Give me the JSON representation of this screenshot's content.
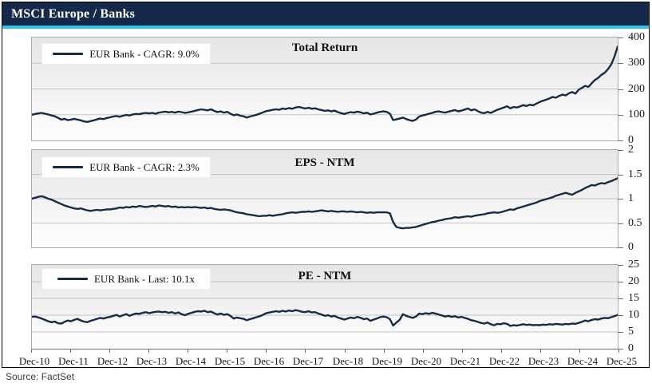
{
  "header": {
    "title": "MSCI Europe / Banks"
  },
  "footer": {
    "source": "Source: FactSet"
  },
  "colors": {
    "header_bg": "#15294b",
    "accent": "#33c1ec",
    "series_line": "#172b47",
    "grid": "#c3c3c3",
    "axis": "#6e6e6e",
    "text": "#1a1a1a"
  },
  "chart_data": [
    {
      "type": "line",
      "title": "Total Return",
      "legend": "EUR Bank - CAGR: 9.0%",
      "ylim": [
        0,
        400
      ],
      "yticks": [
        0,
        100,
        200,
        300,
        400
      ],
      "x_labels": [
        "Dec-10",
        "Dec-11",
        "Dec-12",
        "Dec-13",
        "Dec-14",
        "Dec-15",
        "Dec-16",
        "Dec-17",
        "Dec-18",
        "Dec-19",
        "Dec-20",
        "Dec-21",
        "Dec-22",
        "Dec-23",
        "Dec-24",
        "Dec-25"
      ],
      "series": [
        {
          "name": "EUR Bank",
          "values": [
            100,
            103,
            105,
            107,
            104,
            101,
            97,
            94,
            88,
            81,
            84,
            79,
            81,
            84,
            81,
            78,
            74,
            72,
            75,
            78,
            82,
            85,
            83,
            87,
            90,
            93,
            95,
            92,
            96,
            99,
            97,
            101,
            103,
            102,
            105,
            107,
            105,
            107,
            104,
            108,
            110,
            112,
            109,
            111,
            108,
            112,
            110,
            107,
            109,
            112,
            115,
            118,
            121,
            119,
            117,
            121,
            115,
            110,
            113,
            108,
            111,
            104,
            98,
            101,
            96,
            94,
            89,
            93,
            96,
            100,
            104,
            109,
            114,
            116,
            119,
            121,
            119,
            124,
            122,
            126,
            123,
            128,
            130,
            127,
            124,
            127,
            123,
            125,
            121,
            118,
            115,
            117,
            113,
            116,
            110,
            106,
            103,
            107,
            110,
            108,
            112,
            109,
            105,
            108,
            101,
            104,
            108,
            111,
            113,
            111,
            104,
            79,
            82,
            85,
            89,
            83,
            79,
            76,
            81,
            93,
            97,
            100,
            104,
            107,
            111,
            113,
            110,
            108,
            112,
            115,
            118,
            113,
            116,
            120,
            124,
            117,
            121,
            114,
            108,
            106,
            111,
            107,
            113,
            119,
            123,
            128,
            133,
            125,
            130,
            128,
            132,
            137,
            134,
            139,
            136,
            143,
            149,
            154,
            158,
            163,
            169,
            166,
            173,
            178,
            175,
            183,
            188,
            182,
            197,
            204,
            212,
            208,
            222,
            235,
            243,
            255,
            263,
            277,
            295,
            325,
            365
          ]
        }
      ]
    },
    {
      "type": "line",
      "title": "EPS - NTM",
      "legend": "EUR Bank - CAGR: 2.3%",
      "ylim": [
        0,
        2
      ],
      "yticks": [
        0,
        0.5,
        1,
        1.5,
        2
      ],
      "x_labels": [
        "Dec-10",
        "Dec-11",
        "Dec-12",
        "Dec-13",
        "Dec-14",
        "Dec-15",
        "Dec-16",
        "Dec-17",
        "Dec-18",
        "Dec-19",
        "Dec-20",
        "Dec-21",
        "Dec-22",
        "Dec-23",
        "Dec-24",
        "Dec-25"
      ],
      "series": [
        {
          "name": "EUR Bank",
          "values": [
            1.0,
            1.02,
            1.04,
            1.05,
            1.03,
            1.0,
            0.98,
            0.95,
            0.92,
            0.89,
            0.86,
            0.84,
            0.82,
            0.8,
            0.79,
            0.8,
            0.78,
            0.76,
            0.75,
            0.76,
            0.77,
            0.76,
            0.77,
            0.78,
            0.78,
            0.79,
            0.8,
            0.82,
            0.81,
            0.83,
            0.82,
            0.84,
            0.83,
            0.85,
            0.84,
            0.83,
            0.84,
            0.85,
            0.84,
            0.86,
            0.85,
            0.84,
            0.85,
            0.83,
            0.84,
            0.82,
            0.83,
            0.82,
            0.83,
            0.82,
            0.83,
            0.82,
            0.81,
            0.82,
            0.8,
            0.81,
            0.79,
            0.78,
            0.77,
            0.78,
            0.77,
            0.76,
            0.74,
            0.72,
            0.71,
            0.7,
            0.68,
            0.67,
            0.66,
            0.65,
            0.64,
            0.65,
            0.65,
            0.66,
            0.65,
            0.66,
            0.67,
            0.68,
            0.7,
            0.71,
            0.72,
            0.71,
            0.72,
            0.73,
            0.73,
            0.74,
            0.73,
            0.74,
            0.75,
            0.76,
            0.75,
            0.74,
            0.75,
            0.74,
            0.73,
            0.74,
            0.74,
            0.73,
            0.74,
            0.73,
            0.72,
            0.73,
            0.72,
            0.71,
            0.72,
            0.71,
            0.72,
            0.72,
            0.72,
            0.72,
            0.7,
            0.52,
            0.42,
            0.4,
            0.39,
            0.4,
            0.4,
            0.41,
            0.42,
            0.44,
            0.46,
            0.48,
            0.5,
            0.52,
            0.53,
            0.55,
            0.56,
            0.58,
            0.59,
            0.6,
            0.62,
            0.61,
            0.62,
            0.63,
            0.64,
            0.63,
            0.65,
            0.66,
            0.67,
            0.68,
            0.7,
            0.71,
            0.72,
            0.71,
            0.72,
            0.74,
            0.76,
            0.78,
            0.77,
            0.8,
            0.82,
            0.84,
            0.86,
            0.88,
            0.9,
            0.92,
            0.95,
            0.97,
            0.99,
            1.01,
            1.03,
            1.06,
            1.08,
            1.1,
            1.12,
            1.1,
            1.08,
            1.12,
            1.15,
            1.18,
            1.22,
            1.25,
            1.28,
            1.27,
            1.3,
            1.32,
            1.31,
            1.34,
            1.36,
            1.39,
            1.42
          ]
        }
      ]
    },
    {
      "type": "line",
      "title": "PE - NTM",
      "legend": "EUR Bank - Last: 10.1x",
      "ylim": [
        0,
        25
      ],
      "yticks": [
        0,
        5,
        10,
        15,
        20,
        25
      ],
      "x_labels": [
        "Dec-10",
        "Dec-11",
        "Dec-12",
        "Dec-13",
        "Dec-14",
        "Dec-15",
        "Dec-16",
        "Dec-17",
        "Dec-18",
        "Dec-19",
        "Dec-20",
        "Dec-21",
        "Dec-22",
        "Dec-23",
        "Dec-24",
        "Dec-25"
      ],
      "series": [
        {
          "name": "EUR Bank",
          "values": [
            9.5,
            9.6,
            9.3,
            9.0,
            8.6,
            8.2,
            7.9,
            8.1,
            7.6,
            7.5,
            8.0,
            8.4,
            8.2,
            8.6,
            8.9,
            8.4,
            8.1,
            7.9,
            8.3,
            8.6,
            8.9,
            9.2,
            9.0,
            9.3,
            9.5,
            9.8,
            10.1,
            9.6,
            10.0,
            10.3,
            9.8,
            10.2,
            10.5,
            10.4,
            10.7,
            10.9,
            10.6,
            10.8,
            11.0,
            11.1,
            10.9,
            11.0,
            10.7,
            10.9,
            10.5,
            10.8,
            10.3,
            10.0,
            10.4,
            10.7,
            11.0,
            11.2,
            11.1,
            11.3,
            10.9,
            11.1,
            10.6,
            10.2,
            10.5,
            10.1,
            10.3,
            9.8,
            9.0,
            9.3,
            9.1,
            8.9,
            8.5,
            8.8,
            9.1,
            9.4,
            9.7,
            10.1,
            10.6,
            10.8,
            11.0,
            11.2,
            11.0,
            11.3,
            11.1,
            11.4,
            11.2,
            11.5,
            11.3,
            11.0,
            10.9,
            11.2,
            10.8,
            10.9,
            10.5,
            10.2,
            9.8,
            10.0,
            9.6,
            9.8,
            9.3,
            9.0,
            8.7,
            9.0,
            9.3,
            9.1,
            9.5,
            9.2,
            8.8,
            9.0,
            8.3,
            8.7,
            9.0,
            9.4,
            9.6,
            9.4,
            8.8,
            6.9,
            7.8,
            8.6,
            10.3,
            9.8,
            9.5,
            9.2,
            9.6,
            10.5,
            10.3,
            10.6,
            10.4,
            10.7,
            10.5,
            10.2,
            9.9,
            9.6,
            9.8,
            9.5,
            9.7,
            9.3,
            9.5,
            9.2,
            8.9,
            8.5,
            8.3,
            8.0,
            7.7,
            7.5,
            7.8,
            7.3,
            7.0,
            7.4,
            7.3,
            7.6,
            7.4,
            6.8,
            7.0,
            6.9,
            7.1,
            7.3,
            7.1,
            7.2,
            7.0,
            7.1,
            7.0,
            7.2,
            7.1,
            7.3,
            7.2,
            7.4,
            7.3,
            7.2,
            7.4,
            7.3,
            7.5,
            7.4,
            7.7,
            8.0,
            8.4,
            8.2,
            8.6,
            8.8,
            8.7,
            9.0,
            9.2,
            9.1,
            9.4,
            9.7,
            10.1
          ]
        }
      ]
    }
  ]
}
